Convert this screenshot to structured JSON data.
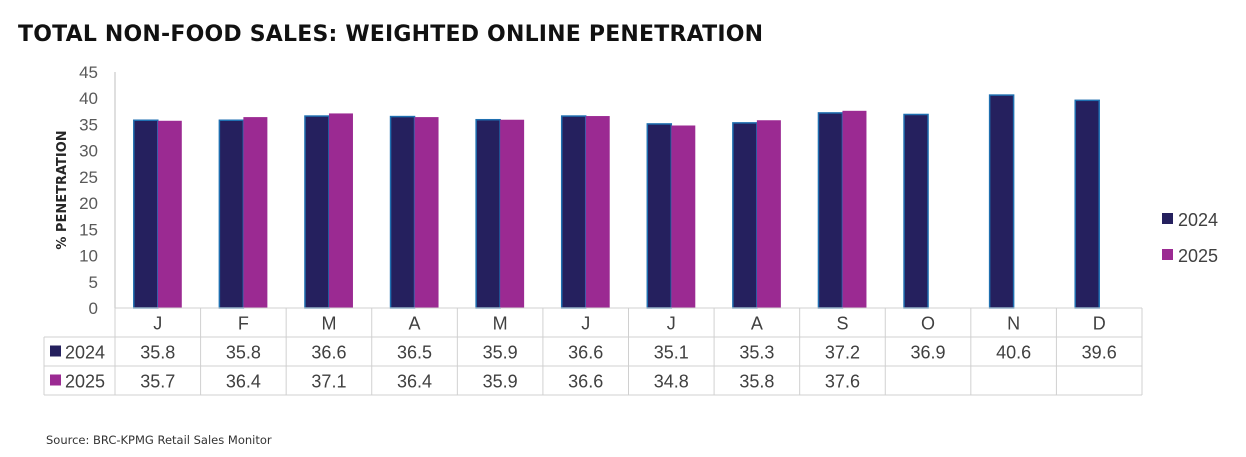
{
  "chart_data": {
    "type": "bar",
    "title": "TOTAL NON-FOOD SALES: WEIGHTED ONLINE PENETRATION",
    "ylabel": "% PENETRATION",
    "xlabel": "",
    "ylim": [
      0,
      45
    ],
    "yticks": [
      "0",
      "5",
      "10",
      "15",
      "20",
      "25",
      "30",
      "35",
      "40",
      "45"
    ],
    "categories": [
      "J",
      "F",
      "M",
      "A",
      "M",
      "J",
      "J",
      "A",
      "S",
      "O",
      "N",
      "D"
    ],
    "series": [
      {
        "name": "2024",
        "color": "#25205e",
        "values": [
          35.8,
          35.8,
          36.6,
          36.5,
          35.9,
          36.6,
          35.1,
          35.3,
          37.2,
          36.9,
          40.6,
          39.6
        ],
        "labels": [
          "35.8",
          "35.8",
          "36.6",
          "36.5",
          "35.9",
          "36.6",
          "35.1",
          "35.3",
          "37.2",
          "36.9",
          "40.6",
          "39.6"
        ]
      },
      {
        "name": "2025",
        "color": "#9b2a92",
        "values": [
          35.7,
          36.4,
          37.1,
          36.4,
          35.9,
          36.6,
          34.8,
          35.8,
          37.6,
          null,
          null,
          null
        ],
        "labels": [
          "35.7",
          "36.4",
          "37.1",
          "36.4",
          "35.9",
          "36.6",
          "34.8",
          "35.8",
          "37.6",
          "",
          "",
          ""
        ]
      }
    ],
    "legend_position": "right",
    "grid": false,
    "data_table": true,
    "source": "Source: BRC-KPMG Retail Sales Monitor"
  }
}
